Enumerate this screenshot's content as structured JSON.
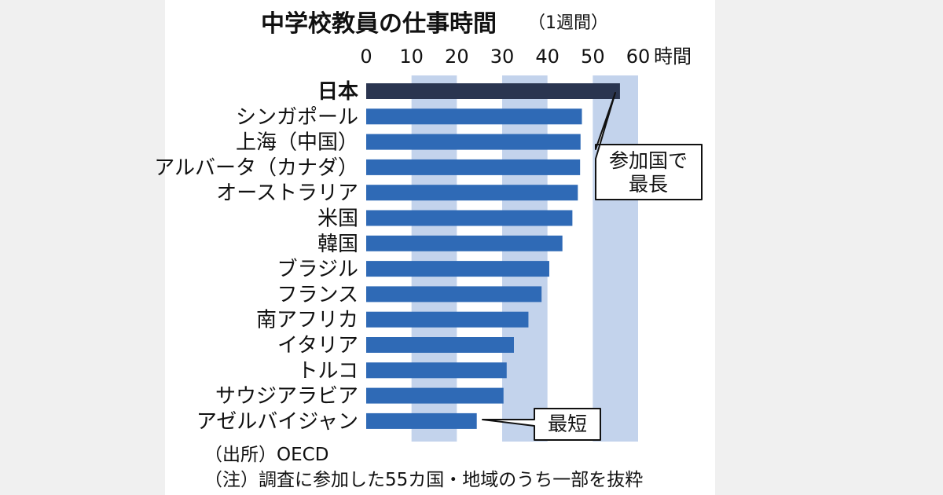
{
  "chart_data": {
    "type": "bar",
    "orientation": "horizontal",
    "title": "中学校教員の仕事時間",
    "subtitle": "（1週間）",
    "xlabel": "時間",
    "xlim": [
      0,
      60
    ],
    "xticks": [
      0,
      10,
      20,
      30,
      40,
      50,
      60
    ],
    "categories": [
      "日本",
      "シンガポール",
      "上海（中国）",
      "アルバータ（カナダ）",
      "オーストラリア",
      "米国",
      "韓国",
      "ブラジル",
      "フランス",
      "南アフリカ",
      "イタリア",
      "トルコ",
      "サウジアラビア",
      "アゼルバイジャン"
    ],
    "values": [
      56.0,
      47.6,
      47.3,
      47.2,
      46.7,
      45.5,
      43.3,
      40.4,
      38.7,
      35.8,
      32.6,
      31.0,
      30.3,
      24.4
    ],
    "highlight_index": 0,
    "annotations": [
      {
        "text": "参加国で\n最長",
        "target": "日本"
      },
      {
        "text": "最短",
        "target": "アゼルバイジャン"
      }
    ],
    "source": "（出所）OECD",
    "footnote": "（注）調査に参加した55カ国・地域のうち一部を抜粋"
  },
  "colors": {
    "bar": "#2f6ab6",
    "highlight": "#2a3550",
    "band": "#c3d3ec",
    "background": "#ffffff"
  }
}
